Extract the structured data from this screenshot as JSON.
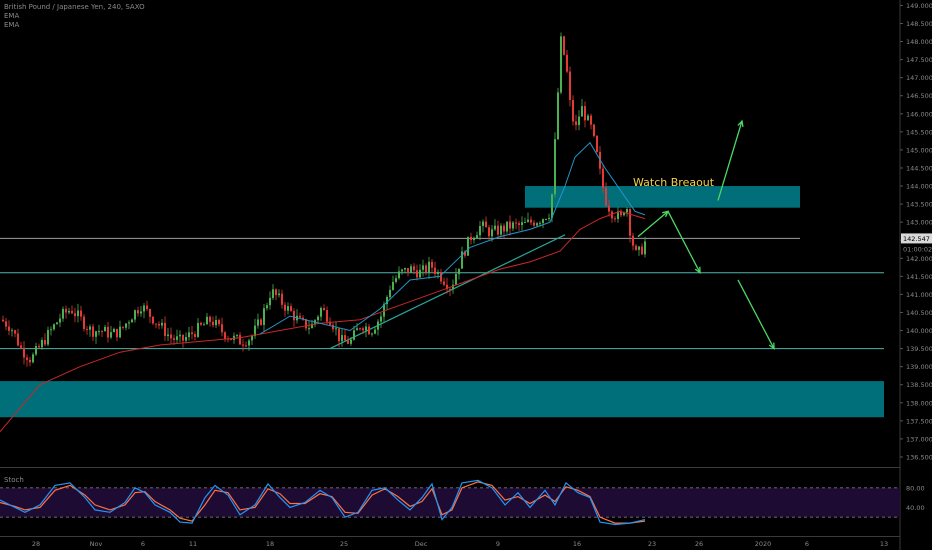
{
  "header": {
    "symbol_line": "British Pound / Japanese Yen, 240, SAXO",
    "indicators": [
      "EMA",
      "EMA"
    ]
  },
  "annotation": {
    "text": "Watch Breaout",
    "color": "#f3d34a"
  },
  "stoch": {
    "label": "Stoch",
    "levels": [
      "80.00",
      "40.00"
    ]
  },
  "colors": {
    "background": "#000000",
    "candle_up": "#4caf50",
    "candle_down": "#e53935",
    "ema_fast": "#2196c8",
    "ema_slow": "#c62828",
    "zone": "#00838f",
    "level_line": "#4db6ac",
    "trend_line": "#26a69a",
    "arrow": "#4cd964",
    "stoch_k": "#2196f3",
    "stoch_d": "#ff7043",
    "stoch_band": "#1e0b33"
  },
  "chart_data": {
    "type": "candlestick",
    "title": "British Pound / Japanese Yen, 240, SAXO",
    "ylim": [
      136.25,
      149.15
    ],
    "y_ticks": [
      "149.000",
      "148.500",
      "148.000",
      "147.500",
      "147.000",
      "146.500",
      "146.000",
      "145.500",
      "145.000",
      "144.500",
      "144.000",
      "143.500",
      "143.000",
      "142.500",
      "142.000",
      "141.500",
      "141.000",
      "140.500",
      "140.000",
      "139.500",
      "139.000",
      "138.500",
      "138.000",
      "137.500",
      "137.000",
      "136.500"
    ],
    "x_ticks": [
      "28",
      "Nov",
      "6",
      "11",
      "18",
      "25",
      "Dec",
      "9",
      "16",
      "23",
      "26",
      "2020",
      "6",
      "13"
    ],
    "price_tags": {
      "last_price": "142.547",
      "countdown": "01:00:02"
    },
    "price_path": [
      [
        0,
        140.3
      ],
      [
        10,
        140.1
      ],
      [
        20,
        139.5
      ],
      [
        30,
        139.2
      ],
      [
        40,
        139.6
      ],
      [
        50,
        140.0
      ],
      [
        60,
        140.4
      ],
      [
        70,
        140.6
      ],
      [
        80,
        140.3
      ],
      [
        90,
        140.0
      ],
      [
        100,
        140.0
      ],
      [
        110,
        139.9
      ],
      [
        120,
        140.0
      ],
      [
        130,
        140.4
      ],
      [
        140,
        140.7
      ],
      [
        150,
        140.4
      ],
      [
        160,
        140.1
      ],
      [
        170,
        139.8
      ],
      [
        180,
        139.7
      ],
      [
        190,
        139.9
      ],
      [
        200,
        140.1
      ],
      [
        210,
        140.3
      ],
      [
        220,
        140.0
      ],
      [
        230,
        139.8
      ],
      [
        240,
        139.7
      ],
      [
        250,
        139.8
      ],
      [
        260,
        140.3
      ],
      [
        270,
        141.1
      ],
      [
        280,
        140.8
      ],
      [
        290,
        140.5
      ],
      [
        300,
        140.2
      ],
      [
        310,
        140.1
      ],
      [
        320,
        140.6
      ],
      [
        330,
        140.3
      ],
      [
        340,
        139.7
      ],
      [
        350,
        139.7
      ],
      [
        360,
        140.2
      ],
      [
        370,
        140.0
      ],
      [
        380,
        140.4
      ],
      [
        390,
        141.3
      ],
      [
        400,
        141.6
      ],
      [
        410,
        141.7
      ],
      [
        420,
        141.6
      ],
      [
        430,
        141.8
      ],
      [
        440,
        141.5
      ],
      [
        450,
        141.2
      ],
      [
        460,
        142.0
      ],
      [
        470,
        142.6
      ],
      [
        480,
        142.9
      ],
      [
        490,
        142.7
      ],
      [
        500,
        142.8
      ],
      [
        510,
        142.9
      ],
      [
        520,
        142.9
      ],
      [
        530,
        143.0
      ],
      [
        540,
        143.1
      ],
      [
        550,
        143.3
      ],
      [
        560,
        148.0
      ],
      [
        565,
        147.4
      ],
      [
        570,
        146.0
      ],
      [
        575,
        145.6
      ],
      [
        580,
        146.2
      ],
      [
        585,
        145.9
      ],
      [
        590,
        145.6
      ],
      [
        595,
        145.0
      ],
      [
        600,
        144.2
      ],
      [
        605,
        143.6
      ],
      [
        610,
        143.3
      ],
      [
        615,
        143.2
      ],
      [
        620,
        143.1
      ],
      [
        625,
        143.6
      ],
      [
        630,
        142.6
      ],
      [
        635,
        142.1
      ],
      [
        640,
        142.2
      ],
      [
        645,
        142.5
      ]
    ],
    "ema_fast_path": [
      [
        260,
        139.9
      ],
      [
        290,
        140.4
      ],
      [
        320,
        140.2
      ],
      [
        350,
        140.0
      ],
      [
        380,
        140.6
      ],
      [
        410,
        141.4
      ],
      [
        440,
        141.5
      ],
      [
        470,
        142.3
      ],
      [
        500,
        142.6
      ],
      [
        530,
        142.8
      ],
      [
        550,
        143.0
      ],
      [
        565,
        144.0
      ],
      [
        575,
        144.8
      ],
      [
        590,
        145.2
      ],
      [
        605,
        144.5
      ],
      [
        620,
        143.9
      ],
      [
        635,
        143.3
      ],
      [
        645,
        143.2
      ]
    ],
    "ema_slow_path": [
      [
        0,
        137.2
      ],
      [
        40,
        138.5
      ],
      [
        80,
        139.0
      ],
      [
        120,
        139.4
      ],
      [
        160,
        139.6
      ],
      [
        200,
        139.7
      ],
      [
        240,
        139.8
      ],
      [
        280,
        140.0
      ],
      [
        320,
        140.2
      ],
      [
        360,
        140.3
      ],
      [
        400,
        140.7
      ],
      [
        440,
        141.1
      ],
      [
        470,
        141.4
      ],
      [
        500,
        141.7
      ],
      [
        530,
        141.9
      ],
      [
        560,
        142.2
      ],
      [
        580,
        142.8
      ],
      [
        600,
        143.1
      ],
      [
        620,
        143.3
      ],
      [
        645,
        143.1
      ]
    ],
    "zones": [
      [
        143.4,
        144.0
      ],
      [
        137.6,
        138.6
      ]
    ],
    "levels": [
      142.55,
      141.6,
      139.5
    ],
    "trendline": [
      [
        330,
        139.5
      ],
      [
        565,
        142.65
      ]
    ],
    "arrows": [
      [
        [
          718,
          143.6
        ],
        [
          742,
          145.8
        ]
      ],
      [
        [
          638,
          142.6
        ],
        [
          668,
          143.3
        ]
      ],
      [
        [
          668,
          143.3
        ],
        [
          700,
          141.6
        ]
      ],
      [
        [
          738,
          141.4
        ],
        [
          774,
          139.5
        ]
      ]
    ],
    "stoch_ylim": [
      0,
      100
    ],
    "stoch_k": [
      [
        0,
        55
      ],
      [
        15,
        40
      ],
      [
        25,
        30
      ],
      [
        40,
        45
      ],
      [
        55,
        85
      ],
      [
        70,
        90
      ],
      [
        85,
        60
      ],
      [
        95,
        35
      ],
      [
        110,
        30
      ],
      [
        125,
        50
      ],
      [
        135,
        80
      ],
      [
        145,
        70
      ],
      [
        155,
        45
      ],
      [
        170,
        30
      ],
      [
        180,
        10
      ],
      [
        192,
        8
      ],
      [
        205,
        60
      ],
      [
        215,
        85
      ],
      [
        228,
        65
      ],
      [
        240,
        25
      ],
      [
        255,
        45
      ],
      [
        268,
        88
      ],
      [
        280,
        60
      ],
      [
        290,
        40
      ],
      [
        305,
        50
      ],
      [
        320,
        75
      ],
      [
        332,
        60
      ],
      [
        345,
        20
      ],
      [
        358,
        30
      ],
      [
        372,
        75
      ],
      [
        385,
        80
      ],
      [
        398,
        55
      ],
      [
        410,
        35
      ],
      [
        422,
        60
      ],
      [
        432,
        88
      ],
      [
        442,
        15
      ],
      [
        452,
        40
      ],
      [
        462,
        90
      ],
      [
        478,
        95
      ],
      [
        492,
        80
      ],
      [
        505,
        45
      ],
      [
        518,
        70
      ],
      [
        530,
        40
      ],
      [
        545,
        75
      ],
      [
        555,
        45
      ],
      [
        566,
        90
      ],
      [
        578,
        70
      ],
      [
        590,
        60
      ],
      [
        600,
        10
      ],
      [
        615,
        5
      ],
      [
        630,
        8
      ],
      [
        645,
        15
      ]
    ],
    "stoch_d": [
      [
        0,
        50
      ],
      [
        15,
        42
      ],
      [
        25,
        35
      ],
      [
        40,
        40
      ],
      [
        55,
        75
      ],
      [
        70,
        85
      ],
      [
        85,
        65
      ],
      [
        95,
        45
      ],
      [
        110,
        35
      ],
      [
        125,
        45
      ],
      [
        135,
        70
      ],
      [
        145,
        72
      ],
      [
        155,
        52
      ],
      [
        170,
        35
      ],
      [
        180,
        18
      ],
      [
        192,
        12
      ],
      [
        205,
        45
      ],
      [
        215,
        75
      ],
      [
        228,
        70
      ],
      [
        240,
        35
      ],
      [
        255,
        40
      ],
      [
        268,
        78
      ],
      [
        280,
        68
      ],
      [
        290,
        48
      ],
      [
        305,
        48
      ],
      [
        320,
        68
      ],
      [
        332,
        62
      ],
      [
        345,
        30
      ],
      [
        358,
        28
      ],
      [
        372,
        65
      ],
      [
        385,
        78
      ],
      [
        398,
        62
      ],
      [
        410,
        42
      ],
      [
        422,
        52
      ],
      [
        432,
        78
      ],
      [
        442,
        25
      ],
      [
        452,
        35
      ],
      [
        462,
        80
      ],
      [
        478,
        92
      ],
      [
        492,
        85
      ],
      [
        505,
        55
      ],
      [
        518,
        62
      ],
      [
        530,
        48
      ],
      [
        545,
        65
      ],
      [
        555,
        52
      ],
      [
        566,
        82
      ],
      [
        578,
        75
      ],
      [
        590,
        62
      ],
      [
        600,
        20
      ],
      [
        615,
        8
      ],
      [
        630,
        8
      ],
      [
        645,
        12
      ]
    ]
  }
}
